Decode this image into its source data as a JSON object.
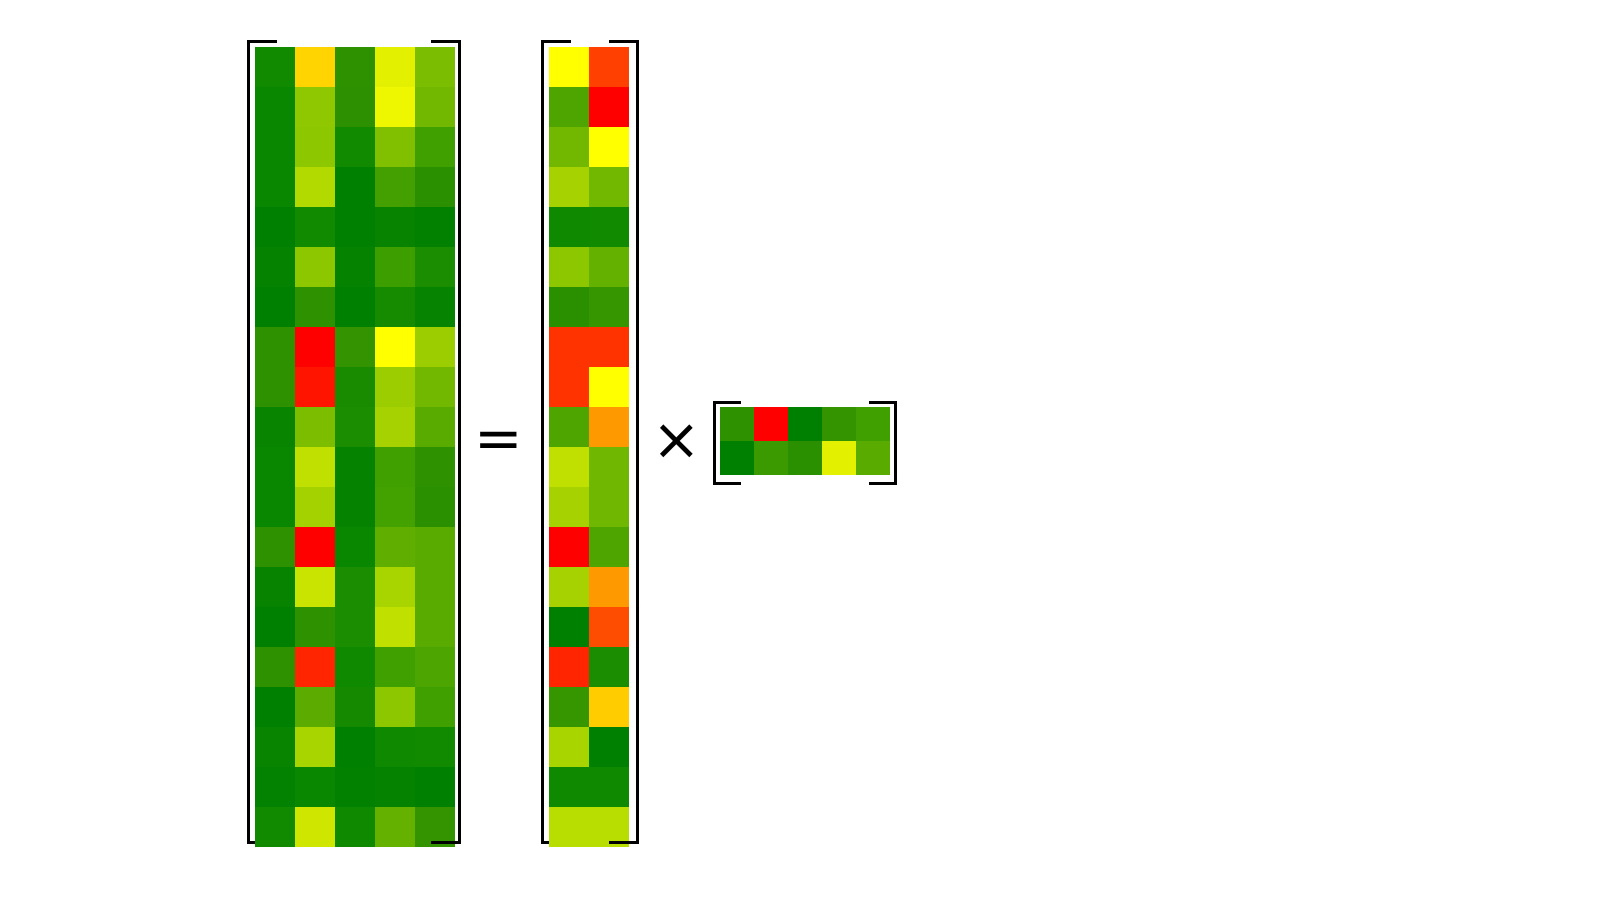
{
  "operators": {
    "equals": "=",
    "times": "×"
  },
  "matrices": [
    {
      "name": "product-matrix",
      "rows": 20,
      "cols": 5,
      "colors": [
        [
          "#118a00",
          "#ffd400",
          "#2d9100",
          "#e3f000",
          "#7bbd00"
        ],
        [
          "#0a8700",
          "#8fc800",
          "#2c9000",
          "#eef600",
          "#72b800"
        ],
        [
          "#0a8700",
          "#8dc700",
          "#128a00",
          "#80c000",
          "#40a000"
        ],
        [
          "#0a8700",
          "#b2da00",
          "#008000",
          "#43a000",
          "#2a9000"
        ],
        [
          "#008000",
          "#128a00",
          "#008000",
          "#078300",
          "#028100"
        ],
        [
          "#058200",
          "#8dc700",
          "#048200",
          "#3d9e00",
          "#1a8d00"
        ],
        [
          "#008000",
          "#2e9200",
          "#008000",
          "#178b00",
          "#068300"
        ],
        [
          "#2d9100",
          "#ff0000",
          "#339300",
          "#ffff00",
          "#9ccd00"
        ],
        [
          "#2d9100",
          "#ff1400",
          "#188b00",
          "#9ccd00",
          "#72b800"
        ],
        [
          "#088400",
          "#7cbd00",
          "#1a8d00",
          "#a5d200",
          "#5aab00"
        ],
        [
          "#0a8700",
          "#bfe000",
          "#048200",
          "#40a000",
          "#2e9200"
        ],
        [
          "#0a8700",
          "#a4d100",
          "#048200",
          "#43a100",
          "#2a9000"
        ],
        [
          "#2d9100",
          "#ff0000",
          "#0a8700",
          "#60ae00",
          "#5aab00"
        ],
        [
          "#078300",
          "#c8e400",
          "#1a8d00",
          "#a8d400",
          "#5aab00"
        ],
        [
          "#008000",
          "#2e9200",
          "#1a8d00",
          "#c0e000",
          "#5aab00"
        ],
        [
          "#2d9100",
          "#ff2500",
          "#0e8900",
          "#40a000",
          "#4ca500"
        ],
        [
          "#008000",
          "#5cab00",
          "#158a00",
          "#8dc700",
          "#40a000"
        ],
        [
          "#088400",
          "#a8d400",
          "#008000",
          "#0e8900",
          "#128a00"
        ],
        [
          "#038100",
          "#0a8700",
          "#028100",
          "#048200",
          "#008000"
        ],
        [
          "#128a00",
          "#cfe700",
          "#0e8900",
          "#64b100",
          "#349400"
        ]
      ]
    },
    {
      "name": "left-factor-matrix",
      "rows": 20,
      "cols": 2,
      "colors": [
        [
          "#ffff00",
          "#ff4000"
        ],
        [
          "#4ea500",
          "#ff0000"
        ],
        [
          "#72b800",
          "#ffff00"
        ],
        [
          "#a5d200",
          "#72b800"
        ],
        [
          "#0e8900",
          "#128a00"
        ],
        [
          "#8dc700",
          "#64b100"
        ],
        [
          "#2a9000",
          "#369600"
        ],
        [
          "#ff3300",
          "#ff3300"
        ],
        [
          "#ff3300",
          "#ffff00"
        ],
        [
          "#4ea500",
          "#ff9900"
        ],
        [
          "#bfe000",
          "#6fb700"
        ],
        [
          "#a5d200",
          "#6fb700"
        ],
        [
          "#ff0000",
          "#4ea500"
        ],
        [
          "#a5d200",
          "#ff9900"
        ],
        [
          "#008000",
          "#ff4d00"
        ],
        [
          "#ff2500",
          "#1a8d00"
        ],
        [
          "#369600",
          "#ffcc00"
        ],
        [
          "#a8d400",
          "#008000"
        ],
        [
          "#0e8900",
          "#0e8900"
        ],
        [
          "#b8dd00",
          "#b8dd00"
        ]
      ]
    },
    {
      "name": "right-factor-matrix",
      "rows": 2,
      "cols": 5,
      "colors": [
        [
          "#2d9100",
          "#ff0000",
          "#008000",
          "#349400",
          "#40a000"
        ],
        [
          "#008000",
          "#3a9a00",
          "#2a9000",
          "#e3f000",
          "#5aab00"
        ]
      ]
    }
  ]
}
